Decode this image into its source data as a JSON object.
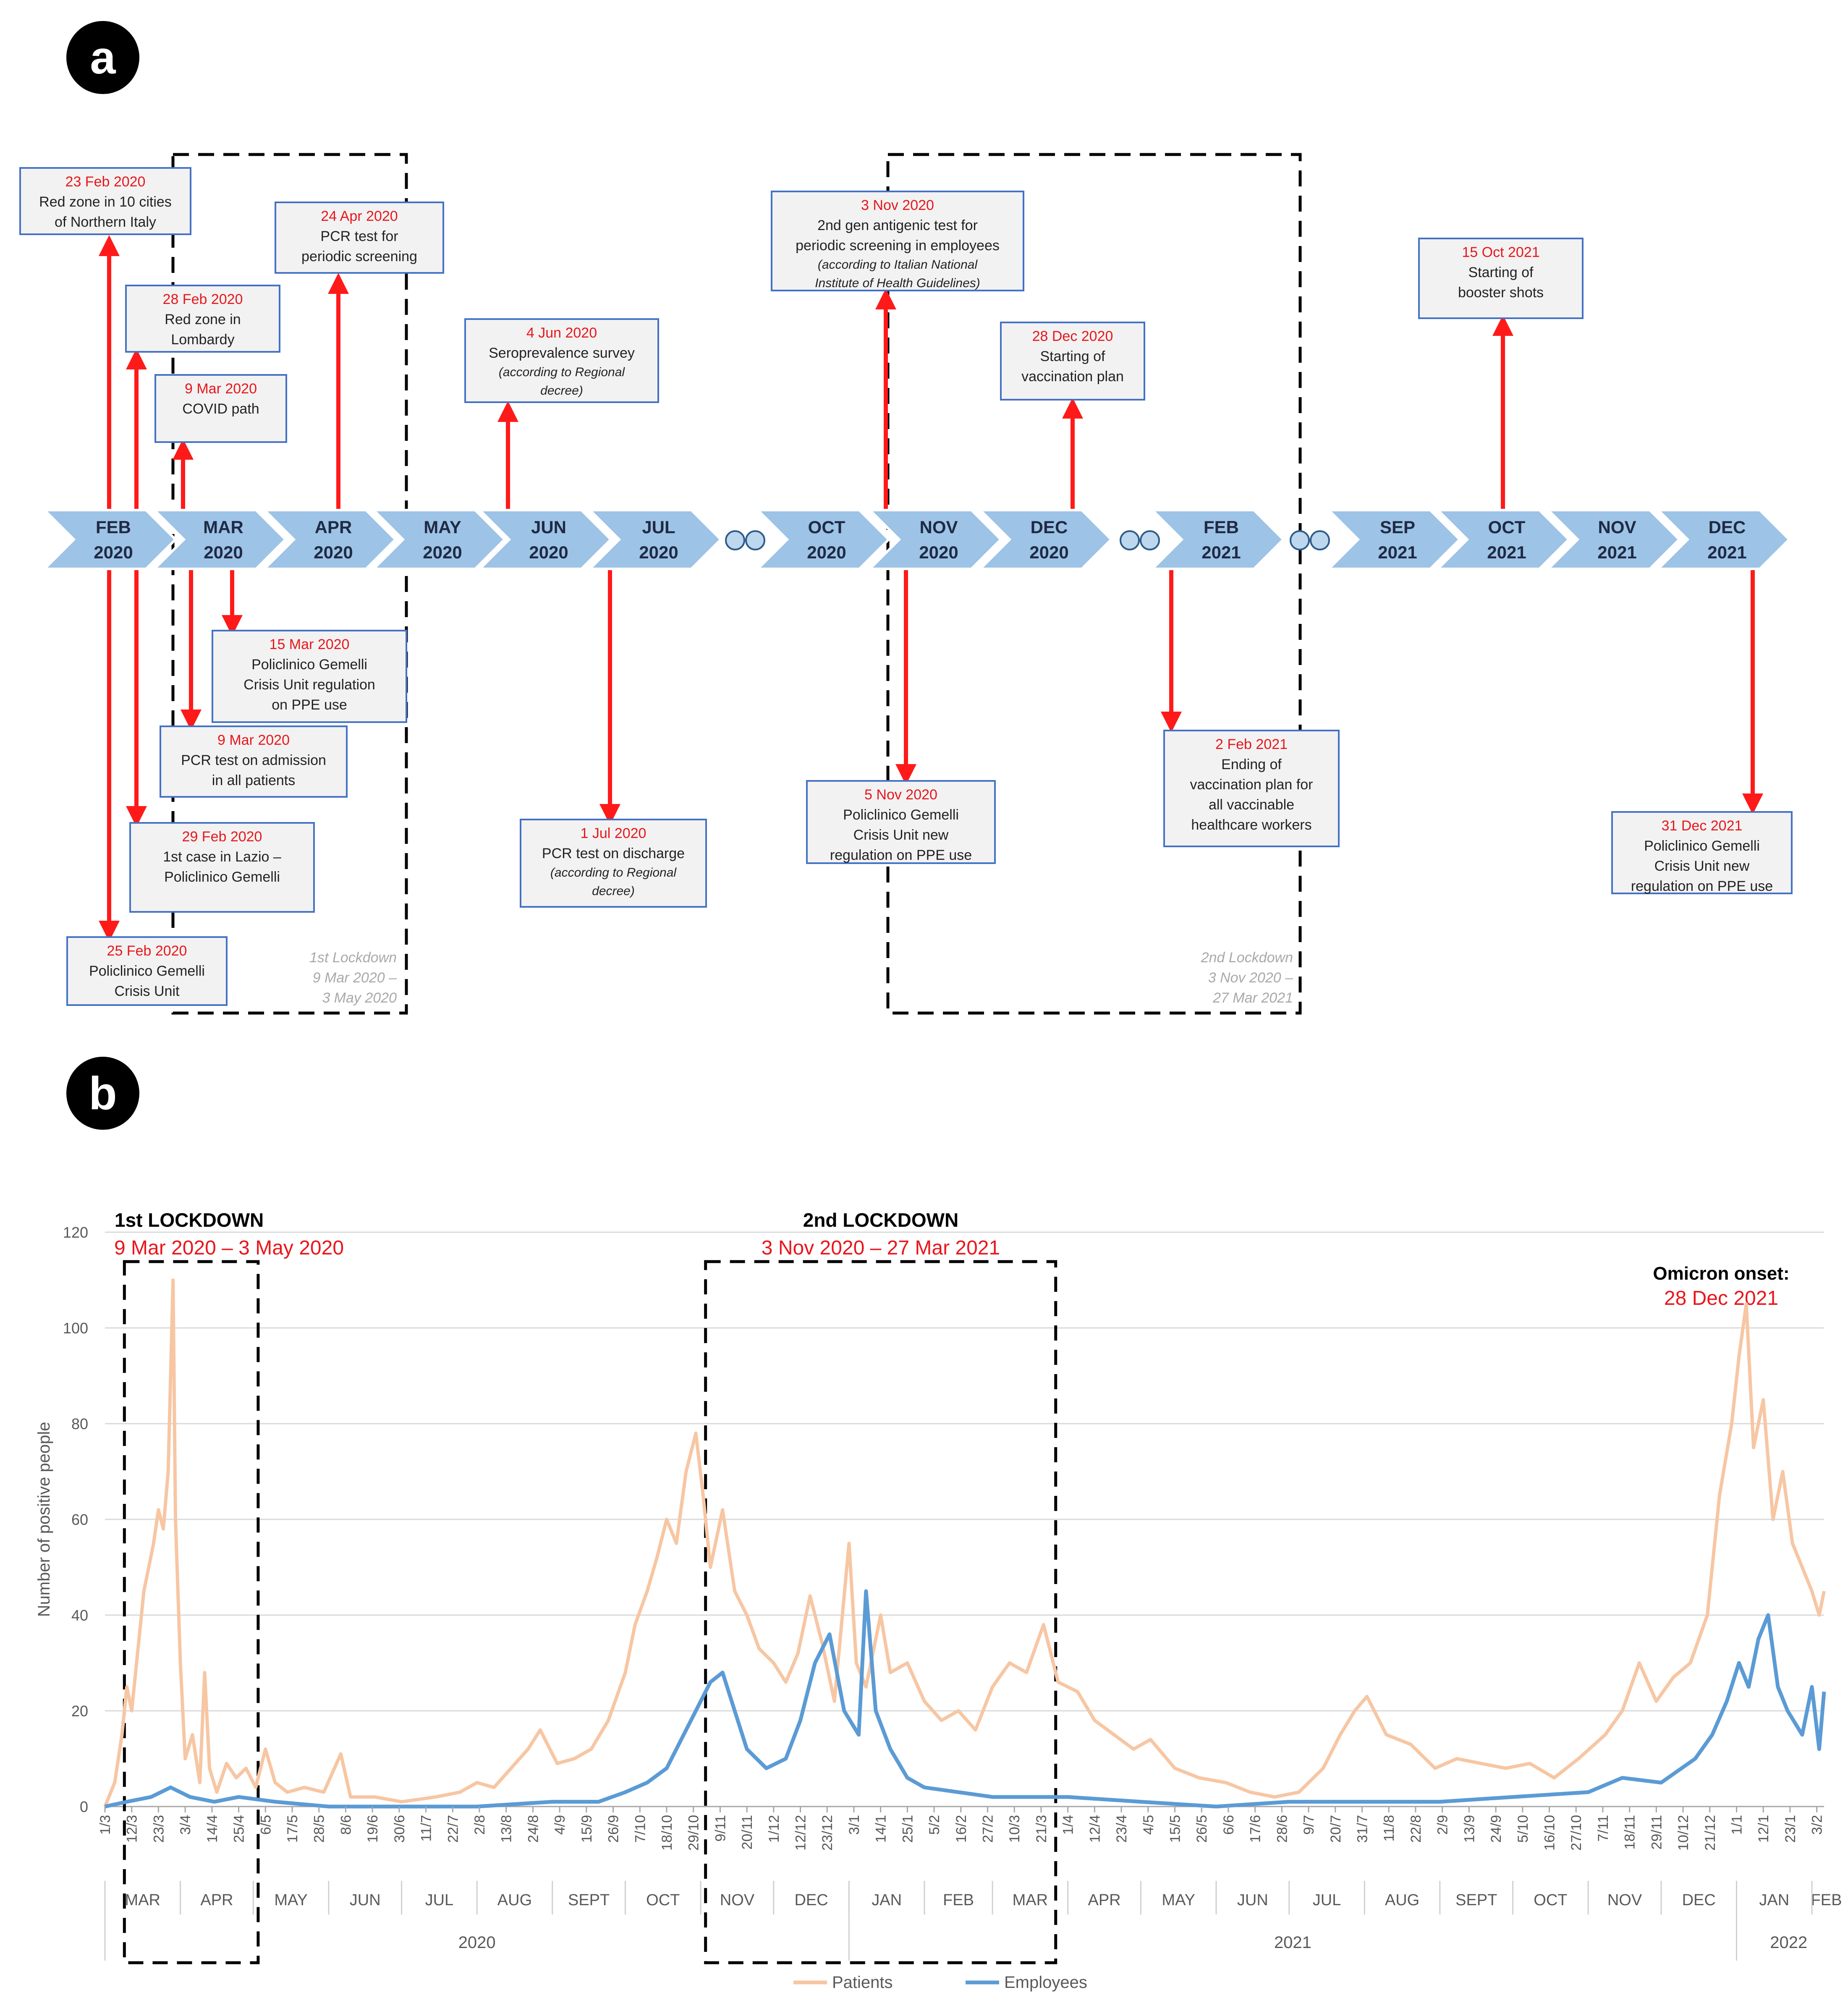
{
  "panel_a": {
    "label": "a",
    "months": [
      {
        "m": "FEB",
        "y": "2020"
      },
      {
        "m": "MAR",
        "y": "2020"
      },
      {
        "m": "APR",
        "y": "2020"
      },
      {
        "m": "MAY",
        "y": "2020"
      },
      {
        "m": "JUN",
        "y": "2020"
      },
      {
        "m": "JUL",
        "y": "2020"
      },
      {
        "gap": true
      },
      {
        "m": "OCT",
        "y": "2020"
      },
      {
        "m": "NOV",
        "y": "2020"
      },
      {
        "m": "DEC",
        "y": "2020"
      },
      {
        "gap": true
      },
      {
        "m": "FEB",
        "y": "2021"
      },
      {
        "gap": true
      },
      {
        "m": "SEP",
        "y": "2021"
      },
      {
        "m": "OCT",
        "y": "2021"
      },
      {
        "m": "NOV",
        "y": "2021"
      },
      {
        "m": "DEC",
        "y": "2021"
      }
    ],
    "events": [
      {
        "date": "23 Feb 2020",
        "lines": [
          "Red zone in 10 cities",
          "of Northern Italy"
        ]
      },
      {
        "date": "28 Feb 2020",
        "lines": [
          "Red zone in",
          "Lombardy"
        ]
      },
      {
        "date": "9 Mar 2020",
        "lines": [
          "COVID path"
        ]
      },
      {
        "date": "24 Apr 2020",
        "lines": [
          "PCR test for",
          "periodic screening"
        ]
      },
      {
        "date": "4 Jun 2020",
        "lines": [
          "Seroprevalence survey"
        ],
        "italic": [
          "(according to Regional",
          "decree)"
        ]
      },
      {
        "date": "3 Nov 2020",
        "lines": [
          "2nd gen antigenic test for",
          "periodic screening in employees"
        ],
        "italic": [
          "(according to Italian National",
          "Institute of Health Guidelines)"
        ]
      },
      {
        "date": "28 Dec 2020",
        "lines": [
          "Starting of",
          "vaccination plan"
        ]
      },
      {
        "date": "15 Oct 2021",
        "lines": [
          "Starting of",
          "booster shots"
        ]
      },
      {
        "date": "15 Mar 2020",
        "lines": [
          "Policlinico Gemelli",
          "Crisis Unit regulation",
          "on PPE use"
        ]
      },
      {
        "date": "9 Mar 2020",
        "lines": [
          "PCR test on admission",
          "in all patients"
        ]
      },
      {
        "date": "29 Feb 2020",
        "lines": [
          "1st case in Lazio –",
          "Policlinico Gemelli"
        ]
      },
      {
        "date": "25 Feb 2020",
        "lines": [
          "Policlinico Gemelli",
          "Crisis Unit"
        ]
      },
      {
        "date": "1 Jul 2020",
        "lines": [
          "PCR test on discharge"
        ],
        "italic": [
          "(according to Regional",
          "decree)"
        ]
      },
      {
        "date": "5 Nov 2020",
        "lines": [
          "Policlinico Gemelli",
          "Crisis Unit new",
          "regulation on PPE use"
        ]
      },
      {
        "date": "2 Feb 2021",
        "lines": [
          "Ending of",
          "vaccination plan for",
          "all vaccinable",
          "healthcare workers"
        ]
      },
      {
        "date": "31 Dec 2021",
        "lines": [
          "Policlinico Gemelli",
          "Crisis Unit new",
          "regulation on PPE use"
        ]
      }
    ],
    "lockdown1_note": [
      "1st Lockdown",
      "9 Mar 2020 –",
      "3 May 2020"
    ],
    "lockdown2_note": [
      "2nd Lockdown",
      "3 Nov 2020 –",
      "27 Mar 2021"
    ]
  },
  "panel_b": {
    "label": "b",
    "lockdown1_title": "1st  LOCKDOWN",
    "lockdown1_dates": "9 Mar 2020 – 3 May 2020",
    "lockdown2_title": "2nd  LOCKDOWN",
    "lockdown2_dates": "3 Nov 2020 – 27 Mar 2021",
    "omicron_title": "Omicron onset:",
    "omicron_date": "28 Dec 2021"
  },
  "chart_data": {
    "type": "line",
    "ylabel": "Number of positive people",
    "ylim": [
      0,
      120
    ],
    "yticks": [
      0,
      20,
      40,
      60,
      80,
      100,
      120
    ],
    "grid": "horizontal",
    "legend": "bottom",
    "date_range": [
      "2020-03-01",
      "2022-02-06"
    ],
    "x_tick_labels": [
      "1/3",
      "12/3",
      "23/3",
      "3/4",
      "14/4",
      "25/4",
      "6/5",
      "17/5",
      "28/5",
      "8/6",
      "19/6",
      "30/6",
      "11/7",
      "22/7",
      "2/8",
      "13/8",
      "24/8",
      "4/9",
      "15/9",
      "26/9",
      "7/10",
      "18/10",
      "29/10",
      "9/11",
      "20/11",
      "1/12",
      "12/12",
      "23/12",
      "3/1",
      "14/1",
      "25/1",
      "5/2",
      "16/2",
      "27/2",
      "10/3",
      "21/3",
      "1/4",
      "12/4",
      "23/4",
      "4/5",
      "15/5",
      "26/5",
      "6/6",
      "17/6",
      "28/6",
      "9/7",
      "20/7",
      "31/7",
      "11/8",
      "22/8",
      "2/9",
      "13/9",
      "24/9",
      "5/10",
      "16/10",
      "27/10",
      "7/11",
      "18/11",
      "29/11",
      "10/12",
      "21/12",
      "1/1",
      "12/1",
      "23/1",
      "3/2"
    ],
    "month_labels": [
      "MAR",
      "APR",
      "MAY",
      "JUN",
      "JUL",
      "AUG",
      "SEPT",
      "OCT",
      "NOV",
      "DEC",
      "JAN",
      "FEB",
      "MAR",
      "APR",
      "MAY",
      "JUN",
      "JUL",
      "AUG",
      "SEPT",
      "OCT",
      "NOV",
      "DEC",
      "JAN",
      "FEB"
    ],
    "year_labels": [
      "2020",
      "2021",
      "2022"
    ],
    "series": [
      {
        "name": "Patients",
        "color": "#f7c6a3",
        "points": [
          [
            "2020-03-01",
            0
          ],
          [
            "2020-03-05",
            5
          ],
          [
            "2020-03-08",
            15
          ],
          [
            "2020-03-10",
            25
          ],
          [
            "2020-03-12",
            20
          ],
          [
            "2020-03-15",
            35
          ],
          [
            "2020-03-17",
            45
          ],
          [
            "2020-03-19",
            50
          ],
          [
            "2020-03-21",
            55
          ],
          [
            "2020-03-23",
            62
          ],
          [
            "2020-03-25",
            58
          ],
          [
            "2020-03-27",
            70
          ],
          [
            "2020-03-29",
            110
          ],
          [
            "2020-03-30",
            60
          ],
          [
            "2020-04-01",
            30
          ],
          [
            "2020-04-03",
            10
          ],
          [
            "2020-04-06",
            15
          ],
          [
            "2020-04-09",
            5
          ],
          [
            "2020-04-11",
            28
          ],
          [
            "2020-04-13",
            8
          ],
          [
            "2020-04-16",
            3
          ],
          [
            "2020-04-20",
            9
          ],
          [
            "2020-04-24",
            6
          ],
          [
            "2020-04-28",
            8
          ],
          [
            "2020-05-02",
            4
          ],
          [
            "2020-05-06",
            12
          ],
          [
            "2020-05-10",
            5
          ],
          [
            "2020-05-15",
            3
          ],
          [
            "2020-05-22",
            4
          ],
          [
            "2020-05-30",
            3
          ],
          [
            "2020-06-06",
            11
          ],
          [
            "2020-06-10",
            2
          ],
          [
            "2020-06-20",
            2
          ],
          [
            "2020-07-01",
            1
          ],
          [
            "2020-07-15",
            2
          ],
          [
            "2020-07-25",
            3
          ],
          [
            "2020-08-01",
            5
          ],
          [
            "2020-08-08",
            4
          ],
          [
            "2020-08-15",
            8
          ],
          [
            "2020-08-22",
            12
          ],
          [
            "2020-08-27",
            16
          ],
          [
            "2020-09-03",
            9
          ],
          [
            "2020-09-10",
            10
          ],
          [
            "2020-09-17",
            12
          ],
          [
            "2020-09-24",
            18
          ],
          [
            "2020-10-01",
            28
          ],
          [
            "2020-10-05",
            38
          ],
          [
            "2020-10-10",
            45
          ],
          [
            "2020-10-14",
            52
          ],
          [
            "2020-10-18",
            60
          ],
          [
            "2020-10-22",
            55
          ],
          [
            "2020-10-26",
            70
          ],
          [
            "2020-10-30",
            78
          ],
          [
            "2020-11-02",
            65
          ],
          [
            "2020-11-05",
            50
          ],
          [
            "2020-11-10",
            62
          ],
          [
            "2020-11-15",
            45
          ],
          [
            "2020-11-20",
            40
          ],
          [
            "2020-11-25",
            33
          ],
          [
            "2020-12-01",
            30
          ],
          [
            "2020-12-06",
            26
          ],
          [
            "2020-12-11",
            32
          ],
          [
            "2020-12-16",
            44
          ],
          [
            "2020-12-21",
            34
          ],
          [
            "2020-12-26",
            22
          ],
          [
            "2021-01-01",
            55
          ],
          [
            "2021-01-04",
            30
          ],
          [
            "2021-01-08",
            25
          ],
          [
            "2021-01-14",
            40
          ],
          [
            "2021-01-18",
            28
          ],
          [
            "2021-01-25",
            30
          ],
          [
            "2021-02-01",
            22
          ],
          [
            "2021-02-08",
            18
          ],
          [
            "2021-02-15",
            20
          ],
          [
            "2021-02-22",
            16
          ],
          [
            "2021-03-01",
            25
          ],
          [
            "2021-03-08",
            30
          ],
          [
            "2021-03-15",
            28
          ],
          [
            "2021-03-22",
            38
          ],
          [
            "2021-03-28",
            26
          ],
          [
            "2021-04-05",
            24
          ],
          [
            "2021-04-12",
            18
          ],
          [
            "2021-04-20",
            15
          ],
          [
            "2021-04-28",
            12
          ],
          [
            "2021-05-05",
            14
          ],
          [
            "2021-05-15",
            8
          ],
          [
            "2021-05-25",
            6
          ],
          [
            "2021-06-05",
            5
          ],
          [
            "2021-06-15",
            3
          ],
          [
            "2021-06-25",
            2
          ],
          [
            "2021-07-05",
            3
          ],
          [
            "2021-07-15",
            8
          ],
          [
            "2021-07-22",
            15
          ],
          [
            "2021-07-28",
            20
          ],
          [
            "2021-08-02",
            23
          ],
          [
            "2021-08-10",
            15
          ],
          [
            "2021-08-20",
            13
          ],
          [
            "2021-08-30",
            8
          ],
          [
            "2021-09-08",
            10
          ],
          [
            "2021-09-18",
            9
          ],
          [
            "2021-09-28",
            8
          ],
          [
            "2021-10-08",
            9
          ],
          [
            "2021-10-18",
            6
          ],
          [
            "2021-10-28",
            10
          ],
          [
            "2021-11-08",
            15
          ],
          [
            "2021-11-15",
            20
          ],
          [
            "2021-11-22",
            30
          ],
          [
            "2021-11-29",
            22
          ],
          [
            "2021-12-06",
            27
          ],
          [
            "2021-12-13",
            30
          ],
          [
            "2021-12-20",
            40
          ],
          [
            "2021-12-25",
            65
          ],
          [
            "2021-12-30",
            80
          ],
          [
            "2022-01-02",
            94
          ],
          [
            "2022-01-05",
            105
          ],
          [
            "2022-01-08",
            75
          ],
          [
            "2022-01-12",
            85
          ],
          [
            "2022-01-16",
            60
          ],
          [
            "2022-01-20",
            70
          ],
          [
            "2022-01-24",
            55
          ],
          [
            "2022-01-28",
            50
          ],
          [
            "2022-02-01",
            45
          ],
          [
            "2022-02-04",
            40
          ],
          [
            "2022-02-06",
            45
          ]
        ]
      },
      {
        "name": "Employees",
        "color": "#5b9bd5",
        "points": [
          [
            "2020-03-01",
            0
          ],
          [
            "2020-03-10",
            1
          ],
          [
            "2020-03-20",
            2
          ],
          [
            "2020-03-28",
            4
          ],
          [
            "2020-04-05",
            2
          ],
          [
            "2020-04-15",
            1
          ],
          [
            "2020-04-25",
            2
          ],
          [
            "2020-05-10",
            1
          ],
          [
            "2020-06-01",
            0
          ],
          [
            "2020-07-01",
            0
          ],
          [
            "2020-08-01",
            0
          ],
          [
            "2020-09-01",
            1
          ],
          [
            "2020-09-20",
            1
          ],
          [
            "2020-10-01",
            3
          ],
          [
            "2020-10-10",
            5
          ],
          [
            "2020-10-18",
            8
          ],
          [
            "2020-10-25",
            15
          ],
          [
            "2020-11-01",
            22
          ],
          [
            "2020-11-05",
            26
          ],
          [
            "2020-11-10",
            28
          ],
          [
            "2020-11-15",
            20
          ],
          [
            "2020-11-20",
            12
          ],
          [
            "2020-11-28",
            8
          ],
          [
            "2020-12-06",
            10
          ],
          [
            "2020-12-12",
            18
          ],
          [
            "2020-12-18",
            30
          ],
          [
            "2020-12-24",
            36
          ],
          [
            "2020-12-30",
            20
          ],
          [
            "2021-01-05",
            15
          ],
          [
            "2021-01-08",
            45
          ],
          [
            "2021-01-12",
            20
          ],
          [
            "2021-01-18",
            12
          ],
          [
            "2021-01-25",
            6
          ],
          [
            "2021-02-01",
            4
          ],
          [
            "2021-02-15",
            3
          ],
          [
            "2021-03-01",
            2
          ],
          [
            "2021-03-15",
            2
          ],
          [
            "2021-04-01",
            2
          ],
          [
            "2021-05-01",
            1
          ],
          [
            "2021-06-01",
            0
          ],
          [
            "2021-07-01",
            1
          ],
          [
            "2021-08-01",
            1
          ],
          [
            "2021-09-01",
            1
          ],
          [
            "2021-10-01",
            2
          ],
          [
            "2021-11-01",
            3
          ],
          [
            "2021-11-15",
            6
          ],
          [
            "2021-12-01",
            5
          ],
          [
            "2021-12-15",
            10
          ],
          [
            "2021-12-22",
            15
          ],
          [
            "2021-12-28",
            22
          ],
          [
            "2022-01-02",
            30
          ],
          [
            "2022-01-06",
            25
          ],
          [
            "2022-01-10",
            35
          ],
          [
            "2022-01-14",
            40
          ],
          [
            "2022-01-18",
            25
          ],
          [
            "2022-01-22",
            20
          ],
          [
            "2022-01-28",
            15
          ],
          [
            "2022-02-01",
            25
          ],
          [
            "2022-02-04",
            12
          ],
          [
            "2022-02-06",
            24
          ]
        ]
      }
    ]
  }
}
